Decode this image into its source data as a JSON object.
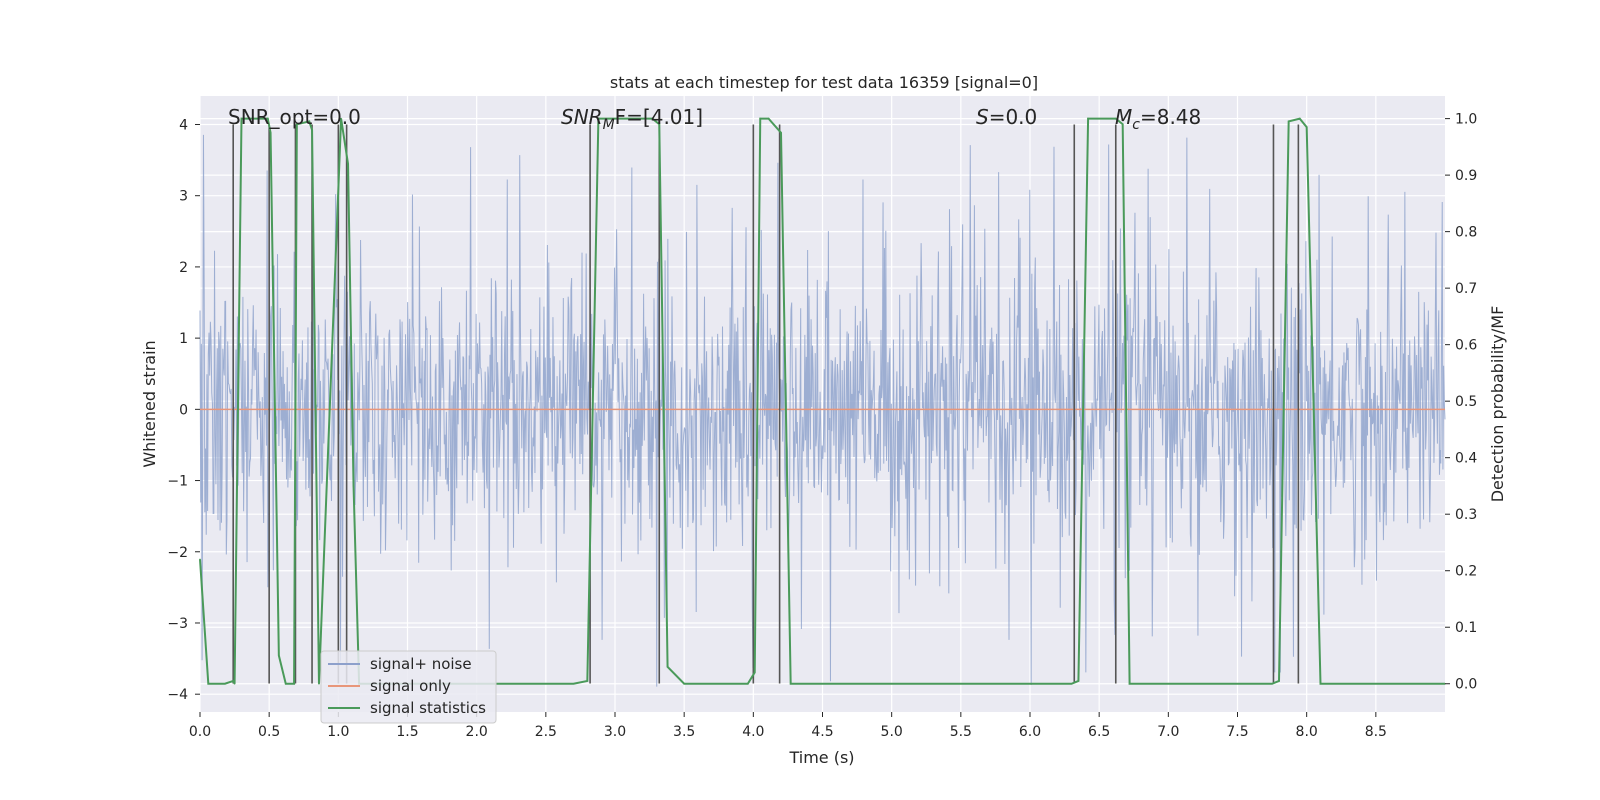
{
  "chart_data": {
    "type": "line",
    "title": "stats at each timestep for test data 16359 [signal=0]",
    "xlabel": "Time (s)",
    "ylabel": "Whitened strain",
    "ylabel_right": "Detection probability/MF",
    "xlim": [
      0.0,
      9.0
    ],
    "ylim": [
      -4.25,
      4.4
    ],
    "ylim_right": [
      -0.05,
      1.04
    ],
    "x_ticks": [
      0.0,
      0.5,
      1.0,
      1.5,
      2.0,
      2.5,
      3.0,
      3.5,
      4.0,
      4.5,
      5.0,
      5.5,
      6.0,
      6.5,
      7.0,
      7.5,
      8.0,
      8.5
    ],
    "x_tick_labels": [
      "0.0",
      "0.5",
      "1.0",
      "1.5",
      "2.0",
      "2.5",
      "3.0",
      "3.5",
      "4.0",
      "4.5",
      "5.0",
      "5.5",
      "6.0",
      "6.5",
      "7.0",
      "7.5",
      "8.0",
      "8.5"
    ],
    "y_ticks": [
      -4,
      -3,
      -2,
      -1,
      0,
      1,
      2,
      3,
      4
    ],
    "y_tick_labels": [
      "−4",
      "−3",
      "−2",
      "−1",
      "0",
      "1",
      "2",
      "3",
      "4"
    ],
    "y_right_ticks": [
      0.0,
      0.1,
      0.2,
      0.3,
      0.4,
      0.5,
      0.6,
      0.7,
      0.8,
      0.9,
      1.0
    ],
    "y_right_tick_labels": [
      "0.0",
      "0.1",
      "0.2",
      "0.3",
      "0.4",
      "0.5",
      "0.6",
      "0.7",
      "0.8",
      "0.9",
      "1.0"
    ],
    "annotations": {
      "snr_opt": "SNR_opt=0.0",
      "snr_mf_base": "SNR",
      "snr_mf_sub": "M",
      "snr_mf_rest": "F=[4.01]",
      "s_var": "S",
      "s_val": "=0.0",
      "mc_var": "M",
      "mc_sub": "c",
      "mc_val": "=8.48"
    },
    "legend": {
      "placement": "lower-left",
      "entries": [
        {
          "label": "signal+ noise",
          "color": "#8da0cb"
        },
        {
          "label": "signal only",
          "color": "#e8967a"
        },
        {
          "label": "signal statistics",
          "color": "#4a9a5a"
        }
      ]
    },
    "grid": true,
    "series": [
      {
        "name": "signal+ noise",
        "axis": "left",
        "color": "#8fa3cc",
        "kind": "noise",
        "amplitude": 2.3,
        "spike_max": 3.9,
        "n_samples": 1800
      },
      {
        "name": "signal only",
        "axis": "left",
        "color": "#e8967a",
        "values_constant": 0.0
      },
      {
        "name": "signal statistics",
        "axis": "right",
        "color": "#4a9a5a",
        "x": [
          0.0,
          0.06,
          0.18,
          0.24,
          0.25,
          0.3,
          0.49,
          0.51,
          0.57,
          0.62,
          0.68,
          0.7,
          0.79,
          0.81,
          0.86,
          1.02,
          1.07,
          1.11,
          1.15,
          1.25,
          2.7,
          2.8,
          2.88,
          3.27,
          3.32,
          3.38,
          3.5,
          3.96,
          4.01,
          4.05,
          4.11,
          4.2,
          4.27,
          6.3,
          6.35,
          6.42,
          6.62,
          6.67,
          6.72,
          7.75,
          7.8,
          7.87,
          7.95,
          8.0,
          8.1,
          8.55,
          9.0
        ],
        "values": [
          0.22,
          0.0,
          0.0,
          0.005,
          0.0,
          1.0,
          1.0,
          0.975,
          0.05,
          0.0,
          0.0,
          0.99,
          0.995,
          0.98,
          0.0,
          1.0,
          0.92,
          0.35,
          0.0,
          0.0,
          0.0,
          0.005,
          1.0,
          1.0,
          0.99,
          0.03,
          0.0,
          0.0,
          0.02,
          1.0,
          1.0,
          0.975,
          0.0,
          0.0,
          0.005,
          1.0,
          1.0,
          0.99,
          0.0,
          0.0,
          0.005,
          0.995,
          1.0,
          0.985,
          0.0,
          0.0,
          0.0
        ]
      }
    ],
    "vertical_markers": [
      0.24,
      0.5,
      0.69,
      0.81,
      1.0,
      1.06,
      2.82,
      3.32,
      4.0,
      4.19,
      6.32,
      6.62,
      7.76,
      7.94
    ]
  }
}
